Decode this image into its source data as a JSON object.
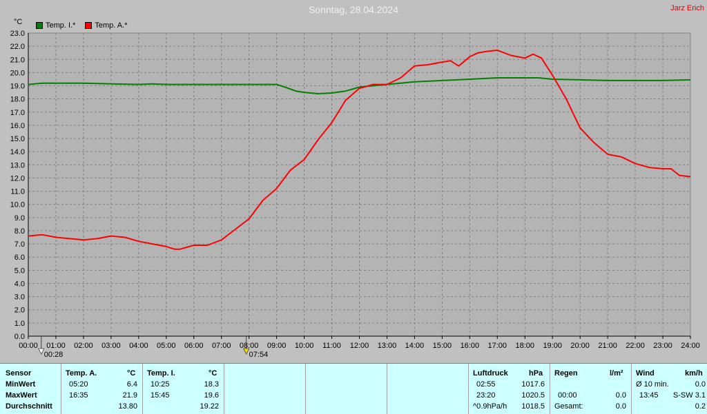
{
  "header": {
    "title": "Sonntag, 28.04.2024",
    "author": "Jarz Erich",
    "unit": "°C"
  },
  "legend": [
    {
      "label": "Temp. I.*",
      "color": "#008000"
    },
    {
      "label": "Temp. A.*",
      "color": "#ff0000"
    }
  ],
  "markers": [
    {
      "time": "00:28",
      "x_hour": 0.47
    },
    {
      "time": "07:54",
      "x_hour": 7.9
    }
  ],
  "chart_data": {
    "type": "line",
    "ylim": [
      0,
      23
    ],
    "xlim": [
      0,
      24
    ],
    "yticks": [
      "0.0",
      "1.0",
      "2.0",
      "3.0",
      "4.0",
      "5.0",
      "6.0",
      "7.0",
      "8.0",
      "9.0",
      "10.0",
      "11.0",
      "12.0",
      "13.0",
      "14.0",
      "15.0",
      "16.0",
      "17.0",
      "18.0",
      "19.0",
      "20.0",
      "21.0",
      "22.0",
      "23.0"
    ],
    "xticks": [
      "00:00",
      "01:00",
      "02:00",
      "03:00",
      "04:00",
      "05:00",
      "06:00",
      "07:00",
      "08:00",
      "09:00",
      "10:00",
      "11:00",
      "12:00",
      "13:00",
      "14:00",
      "15:00",
      "16:00",
      "17:00",
      "18:00",
      "19:00",
      "20:00",
      "21:00",
      "22:00",
      "23:00",
      "24:00"
    ],
    "grid": true,
    "legend_position": "top-left",
    "series": [
      {
        "name": "Temp. I.*",
        "color": "#008000",
        "x": [
          0,
          0.5,
          1,
          2,
          3,
          4,
          4.5,
          5,
          6,
          7,
          8,
          9,
          9.3,
          9.7,
          10,
          10.5,
          11,
          11.5,
          12,
          12.5,
          13,
          14,
          15,
          16,
          17,
          18,
          18.5,
          19,
          20,
          21,
          22,
          23,
          24
        ],
        "y": [
          19.1,
          19.2,
          19.2,
          19.2,
          19.15,
          19.1,
          19.15,
          19.1,
          19.1,
          19.1,
          19.1,
          19.1,
          18.9,
          18.6,
          18.5,
          18.4,
          18.45,
          18.6,
          18.9,
          19.0,
          19.1,
          19.3,
          19.4,
          19.5,
          19.6,
          19.6,
          19.6,
          19.5,
          19.45,
          19.4,
          19.4,
          19.4,
          19.45
        ]
      },
      {
        "name": "Temp. A.*",
        "color": "#ff0000",
        "x": [
          0,
          0.5,
          1,
          1.5,
          2,
          2.5,
          3,
          3.5,
          4,
          4.5,
          5,
          5.3,
          5.5,
          6,
          6.5,
          7,
          7.5,
          8,
          8.5,
          9,
          9.5,
          10,
          10.5,
          11,
          11.5,
          12,
          12.5,
          13,
          13.5,
          14,
          14.5,
          15,
          15.3,
          15.6,
          16,
          16.3,
          16.6,
          17,
          17.5,
          18,
          18.3,
          18.6,
          19,
          19.5,
          20,
          20.5,
          21,
          21.5,
          22,
          22.5,
          23,
          23.3,
          23.6,
          24
        ],
        "y": [
          7.6,
          7.7,
          7.5,
          7.4,
          7.3,
          7.4,
          7.6,
          7.5,
          7.2,
          7.0,
          6.8,
          6.6,
          6.6,
          6.9,
          6.9,
          7.3,
          8.1,
          8.9,
          10.3,
          11.2,
          12.6,
          13.4,
          14.9,
          16.2,
          17.9,
          18.8,
          19.1,
          19.1,
          19.6,
          20.5,
          20.6,
          20.8,
          20.9,
          20.5,
          21.2,
          21.5,
          21.6,
          21.7,
          21.3,
          21.1,
          21.4,
          21.1,
          19.8,
          18.0,
          15.8,
          14.7,
          13.8,
          13.6,
          13.1,
          12.8,
          12.7,
          12.7,
          12.2,
          12.1
        ]
      }
    ]
  },
  "table": {
    "headers": {
      "sensor": "Sensor",
      "temp_a": "Temp. A.",
      "temp_a_unit": "°C",
      "temp_i": "Temp. I.",
      "temp_i_unit": "°C",
      "luftdruck": "Luftdruck",
      "luftdruck_unit": "hPa",
      "regen": "Regen",
      "regen_unit": "l/m²",
      "wind": "Wind",
      "wind_unit": "km/h"
    },
    "rows": [
      {
        "label": "MinWert",
        "ta_time": "05:20",
        "ta_val": "6.4",
        "ti_time": "10:25",
        "ti_val": "18.3",
        "ld_time": "02:55",
        "ld_val": "1017.6",
        "rg_time": "",
        "rg_val": "",
        "wd_time": "Ø 10 min.",
        "wd_val": "0.0"
      },
      {
        "label": "MaxWert",
        "ta_time": "16:35",
        "ta_val": "21.9",
        "ti_time": "15:45",
        "ti_val": "19.6",
        "ld_time": "23:20",
        "ld_val": "1020.5",
        "rg_time": "00:00",
        "rg_val": "0.0",
        "wd_time": "13:45",
        "wd_val": "S-SW 3.1"
      },
      {
        "label": "Durchschnitt",
        "ta_time": "",
        "ta_val": "13.80",
        "ti_time": "",
        "ti_val": "19.22",
        "ld_time": "^0.9hPa/h",
        "ld_val": "1018.5",
        "rg_time": "Gesamt:",
        "rg_val": "0.0",
        "wd_time": "",
        "wd_val": "0.2"
      }
    ]
  }
}
